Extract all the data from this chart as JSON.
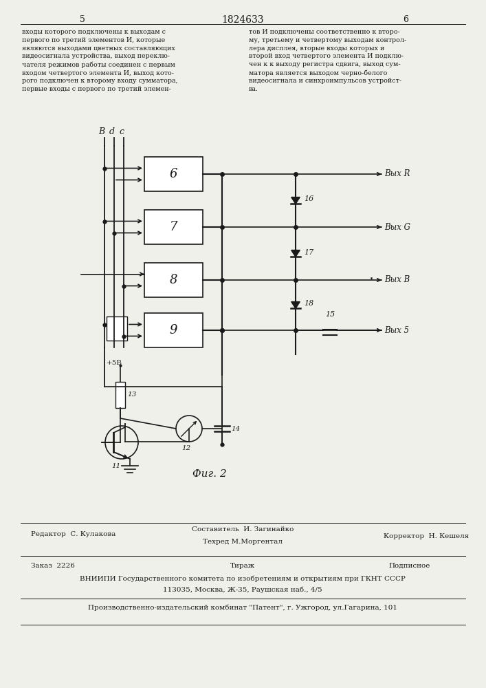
{
  "page_number_left": "5",
  "page_number_center": "1824633",
  "page_number_right": "6",
  "text_left": "входы которого подключены к выходам с\nпервого по третий элементов И, которые\nявляются выходами цветных составляющих\nвидеосигнала устройства, выход переклю-\nчателя режимов работы соединен с первым\nвходом четвертого элемента И, выход кото-\nрого подключен к второму входу сумматора,\nпервые входы с первого по третий элемен-",
  "text_right": "тов И подключены соответственно к второ-\nму, третьему и четвертому выходам контрол-\nлера дисплея, вторые входы которых и\nвторой вход четвертого элемента И подклю-\nчен к к выходу регистра сдвига, выход сум-\nматора является выходом черно-белого\nвидеосигнала и синхроимпульсов устройст-\nва.",
  "fig_caption": "Фиг. 2",
  "editor_label": "Редактор",
  "editor_name": "С. Кулакова",
  "composer_label": "Составитель",
  "composer_name": "И. Загинайко",
  "techred_label": "Техред",
  "techred_name": "М.Моргентал",
  "corrector_label": "Корректор",
  "corrector_name": "Н. Кешеля",
  "order_label": "Заказ",
  "order_number": "2226",
  "tirazh_label": "Тираж",
  "podpisnoe_label": "Подписное",
  "vniiipi_text": "ВНИИПИ Государственного комитета по изобретениям и открытиям при ГКНТ СССР",
  "address_text": "113035, Москва, Ж-35, Раушская наб., 4/5",
  "factory_text": "Производственно-издательский комбинат \"Патент\", г. Ужгород, ул.Гагарина, 101",
  "bg_color": "#f0f0eb",
  "line_color": "#1a1a1a",
  "text_color": "#1a1a1a"
}
